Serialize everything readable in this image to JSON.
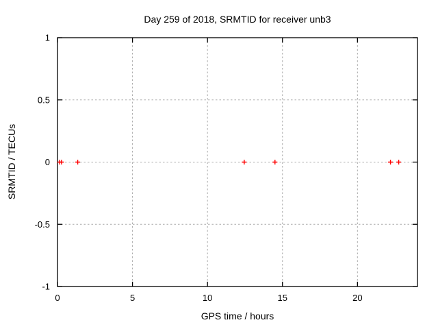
{
  "chart_data": {
    "type": "scatter",
    "title": "Day 259 of 2018, SRMTID for receiver unb3",
    "xlabel": "GPS time / hours",
    "ylabel": "SRMTID / TECUs",
    "xlim": [
      0,
      24
    ],
    "ylim": [
      -1,
      1
    ],
    "xtick_values": [
      0,
      5,
      10,
      15,
      20
    ],
    "xtick_labels": [
      "0",
      "5",
      "10",
      "15",
      "20"
    ],
    "ytick_values": [
      -1,
      -0.5,
      0,
      0.5,
      1
    ],
    "ytick_labels": [
      "-1",
      "-0.5",
      "0",
      "0.5",
      "1"
    ],
    "grid": true,
    "grid_style": "dashed",
    "legend": "none",
    "series": [
      {
        "name": "SRMTID",
        "marker": "plus",
        "color": "#ff0000",
        "points": [
          [
            0.15,
            0
          ],
          [
            0.27,
            0
          ],
          [
            1.35,
            0
          ],
          [
            12.45,
            0
          ],
          [
            14.5,
            0
          ],
          [
            22.2,
            0
          ],
          [
            22.75,
            0
          ]
        ]
      }
    ]
  },
  "colors": {
    "background": "#ffffff",
    "border": "#000000",
    "grid": "#aaaaaa",
    "text": "#000000",
    "marker": "#ff0000"
  }
}
